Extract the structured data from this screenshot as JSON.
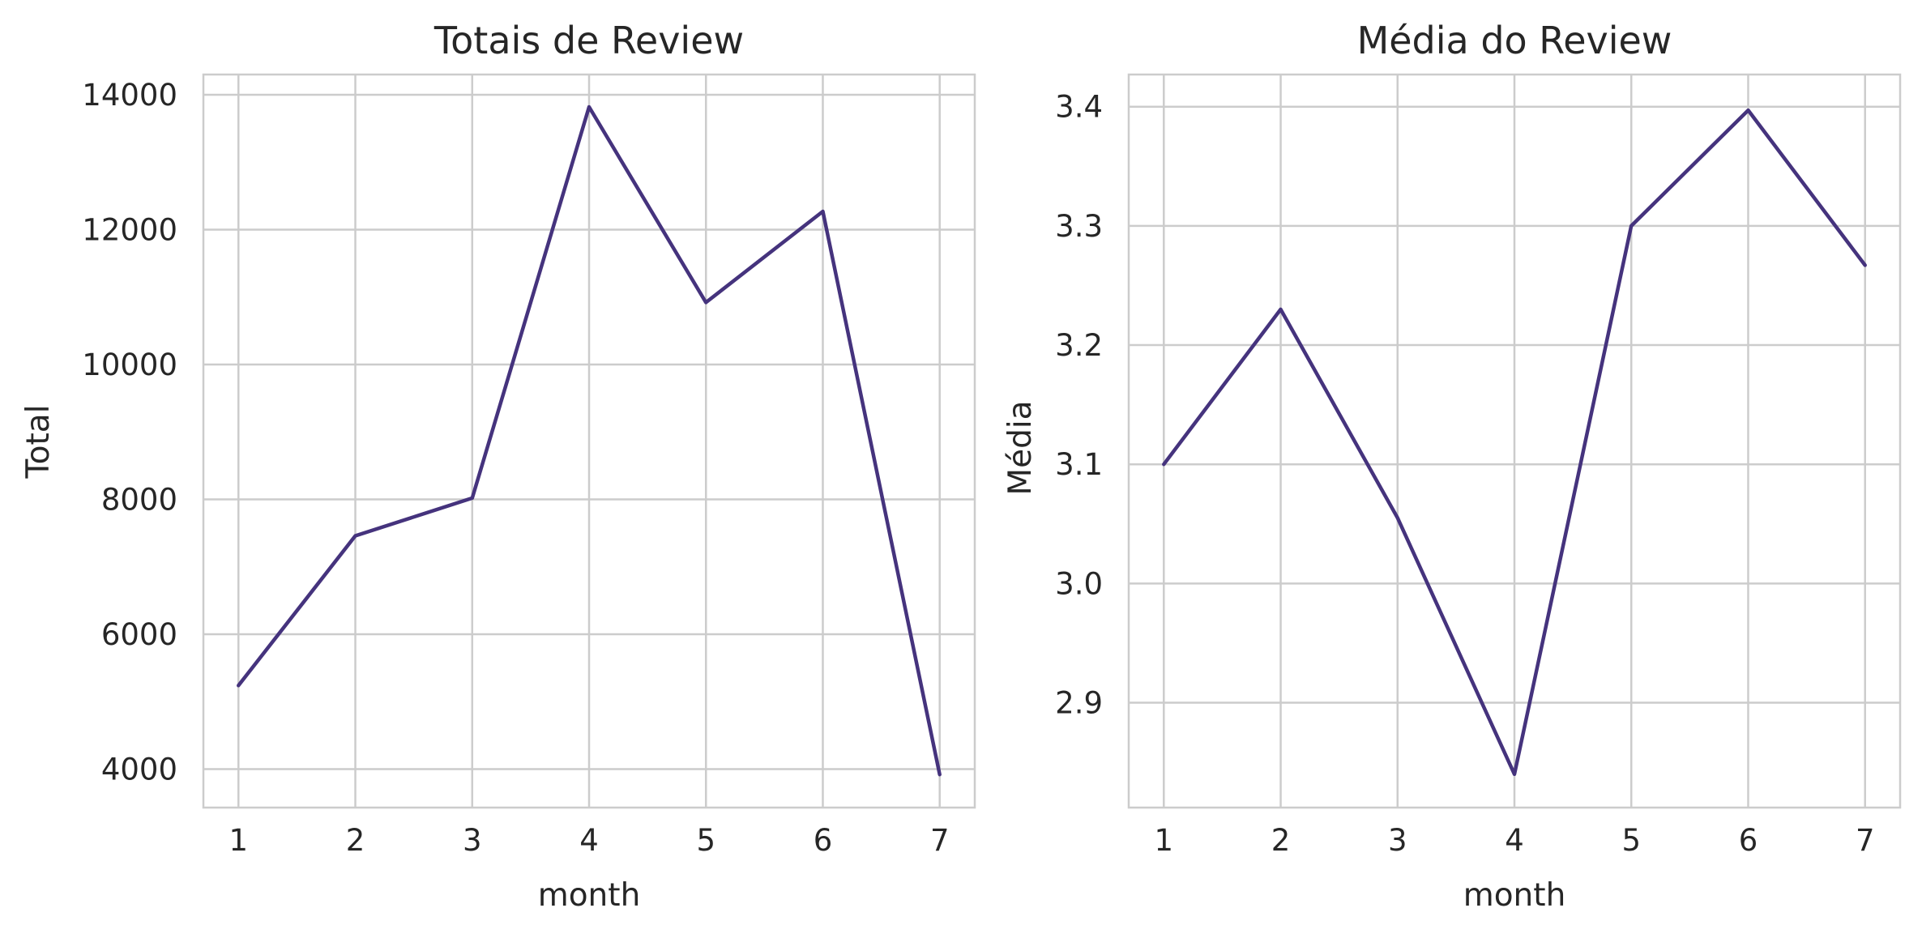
{
  "chart_data": [
    {
      "type": "line",
      "title": "Totais de Review",
      "xlabel": "month",
      "ylabel": "Total",
      "x": [
        1,
        2,
        3,
        4,
        5,
        6,
        7
      ],
      "xticks": [
        "1",
        "2",
        "3",
        "4",
        "5",
        "6",
        "7"
      ],
      "xlim": [
        0.7,
        7.3
      ],
      "yticks": [
        "4000",
        "6000",
        "8000",
        "10000",
        "12000",
        "14000"
      ],
      "ytick_values": [
        4000,
        6000,
        8000,
        10000,
        12000,
        14000
      ],
      "ylim": [
        3430,
        14300
      ],
      "grid": true,
      "series": [
        {
          "values": [
            5240,
            7460,
            8020,
            13820,
            10920,
            12270,
            3920
          ],
          "color": "#45337d"
        }
      ]
    },
    {
      "type": "line",
      "title": "Média do Review",
      "xlabel": "month",
      "ylabel": "Média",
      "x": [
        1,
        2,
        3,
        4,
        5,
        6,
        7
      ],
      "xticks": [
        "1",
        "2",
        "3",
        "4",
        "5",
        "6",
        "7"
      ],
      "xlim": [
        0.7,
        7.3
      ],
      "yticks": [
        "2.9",
        "3.0",
        "3.1",
        "3.2",
        "3.3",
        "3.4"
      ],
      "ytick_values": [
        2.9,
        3.0,
        3.1,
        3.2,
        3.3,
        3.4
      ],
      "ylim": [
        2.812,
        3.427
      ],
      "grid": true,
      "series": [
        {
          "values": [
            3.1,
            3.23,
            3.055,
            2.84,
            3.3,
            3.397,
            3.267
          ],
          "color": "#45337d"
        }
      ]
    }
  ]
}
